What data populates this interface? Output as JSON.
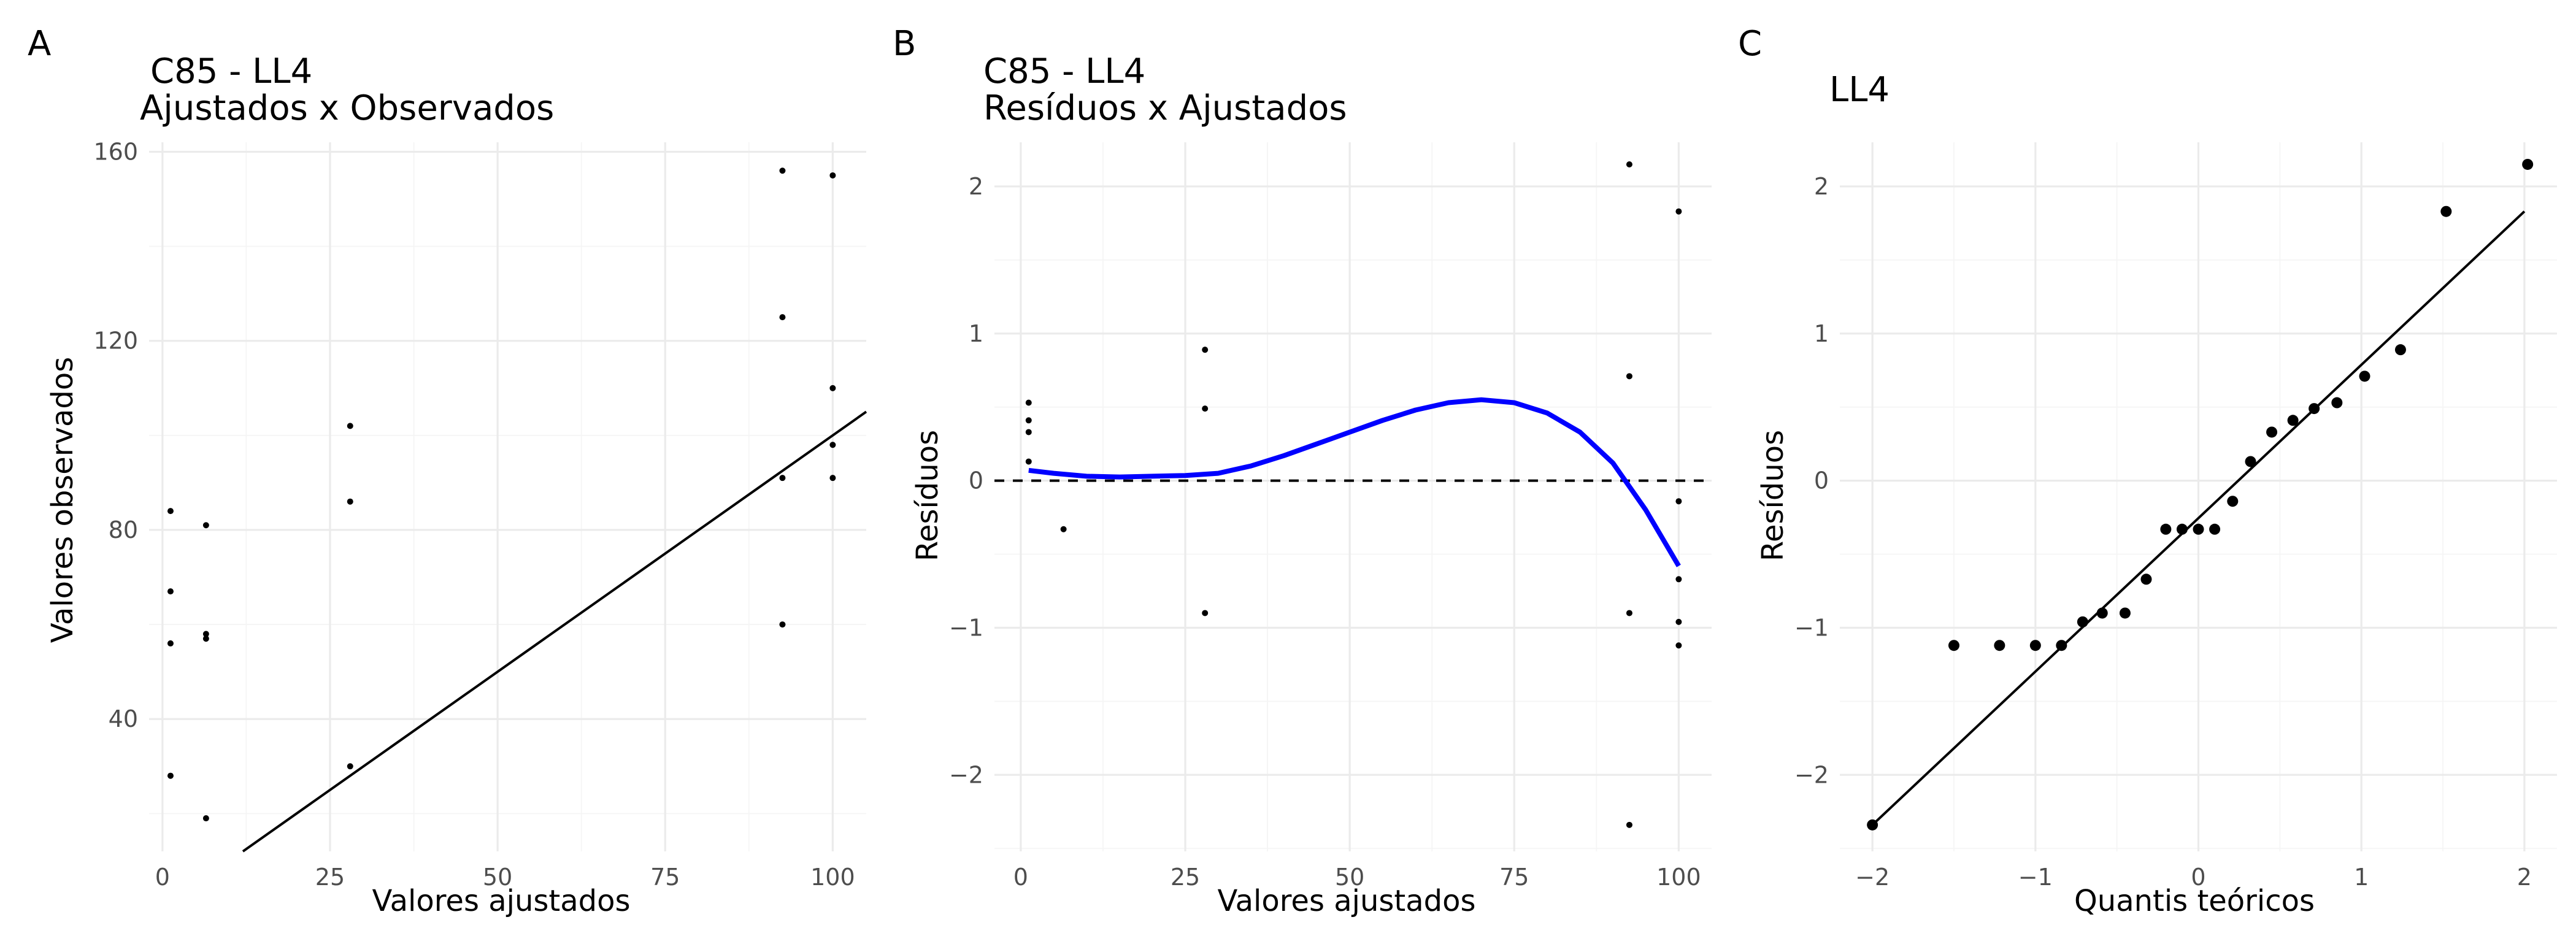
{
  "panel_tags": [
    "A",
    "B",
    "C"
  ],
  "chart_data": [
    {
      "type": "scatter",
      "tag": "A",
      "title_line1": "C85 - LL4",
      "title_line2": "Ajustados x Observados",
      "xlabel": "Valores ajustados",
      "ylabel": "Valores observados",
      "xlim": [
        -2,
        105
      ],
      "ylim": [
        12,
        162
      ],
      "x_ticks": [
        0,
        25,
        50,
        75,
        100
      ],
      "y_ticks": [
        40,
        80,
        120,
        160
      ],
      "grid": true,
      "points": [
        {
          "x": 1.2,
          "y": 84
        },
        {
          "x": 1.2,
          "y": 67
        },
        {
          "x": 1.2,
          "y": 56
        },
        {
          "x": 1.2,
          "y": 28
        },
        {
          "x": 6.5,
          "y": 81
        },
        {
          "x": 6.5,
          "y": 58
        },
        {
          "x": 6.5,
          "y": 57
        },
        {
          "x": 6.5,
          "y": 19
        },
        {
          "x": 28,
          "y": 102
        },
        {
          "x": 28,
          "y": 86
        },
        {
          "x": 28,
          "y": 30
        },
        {
          "x": 92.5,
          "y": 156
        },
        {
          "x": 92.5,
          "y": 125
        },
        {
          "x": 92.5,
          "y": 91
        },
        {
          "x": 92.5,
          "y": 60
        },
        {
          "x": 100,
          "y": 155
        },
        {
          "x": 100,
          "y": 110
        },
        {
          "x": 100,
          "y": 98
        },
        {
          "x": 100,
          "y": 91
        }
      ],
      "reference_line": {
        "intercept": 0,
        "slope": 1
      }
    },
    {
      "type": "scatter",
      "tag": "B",
      "title_line1": "C85 - LL4",
      "title_line2": "Resíduos x Ajustados",
      "xlabel": "Valores ajustados",
      "ylabel": "Resíduos",
      "xlim": [
        -4,
        105
      ],
      "ylim": [
        -2.52,
        2.3
      ],
      "x_ticks": [
        0,
        25,
        50,
        75,
        100
      ],
      "y_ticks": [
        -2,
        -1,
        0,
        1,
        2
      ],
      "grid": true,
      "points": [
        {
          "x": 1.2,
          "y": 0.53
        },
        {
          "x": 1.2,
          "y": 0.41
        },
        {
          "x": 1.2,
          "y": 0.33
        },
        {
          "x": 1.2,
          "y": 0.13
        },
        {
          "x": 6.5,
          "y": -0.33
        },
        {
          "x": 28,
          "y": 0.89
        },
        {
          "x": 28,
          "y": 0.49
        },
        {
          "x": 28,
          "y": -0.9
        },
        {
          "x": 92.5,
          "y": 2.15
        },
        {
          "x": 92.5,
          "y": 0.71
        },
        {
          "x": 92.5,
          "y": -0.9
        },
        {
          "x": 92.5,
          "y": -2.34
        },
        {
          "x": 100,
          "y": 1.83
        },
        {
          "x": 100,
          "y": -0.14
        },
        {
          "x": 100,
          "y": -0.67
        },
        {
          "x": 100,
          "y": -0.96
        },
        {
          "x": 100,
          "y": -1.12
        }
      ],
      "zero_line": 0,
      "smooth_color": "#0000ff",
      "smooth_curve": [
        {
          "x": 1.2,
          "y": 0.07
        },
        {
          "x": 5,
          "y": 0.05
        },
        {
          "x": 10,
          "y": 0.03
        },
        {
          "x": 15,
          "y": 0.025
        },
        {
          "x": 20,
          "y": 0.03
        },
        {
          "x": 25,
          "y": 0.035
        },
        {
          "x": 30,
          "y": 0.05
        },
        {
          "x": 35,
          "y": 0.1
        },
        {
          "x": 40,
          "y": 0.17
        },
        {
          "x": 45,
          "y": 0.25
        },
        {
          "x": 50,
          "y": 0.33
        },
        {
          "x": 55,
          "y": 0.41
        },
        {
          "x": 60,
          "y": 0.48
        },
        {
          "x": 65,
          "y": 0.53
        },
        {
          "x": 70,
          "y": 0.55
        },
        {
          "x": 75,
          "y": 0.53
        },
        {
          "x": 80,
          "y": 0.46
        },
        {
          "x": 85,
          "y": 0.33
        },
        {
          "x": 90,
          "y": 0.12
        },
        {
          "x": 95,
          "y": -0.2
        },
        {
          "x": 100,
          "y": -0.58
        }
      ]
    },
    {
      "type": "scatter",
      "tag": "C",
      "title_line1": "LL4",
      "title_line2": "",
      "xlabel": "Quantis teóricos",
      "ylabel": "Resíduos",
      "xlim": [
        -2.2,
        2.2
      ],
      "ylim": [
        -2.52,
        2.3
      ],
      "x_ticks": [
        -2,
        -1,
        0,
        1,
        2
      ],
      "y_ticks": [
        -2,
        -1,
        0,
        1,
        2
      ],
      "grid": true,
      "points": [
        {
          "x": -2.0,
          "y": -2.34
        },
        {
          "x": -1.5,
          "y": -1.12
        },
        {
          "x": -1.22,
          "y": -1.12
        },
        {
          "x": -1.0,
          "y": -1.12
        },
        {
          "x": -0.84,
          "y": -1.12
        },
        {
          "x": -0.71,
          "y": -0.96
        },
        {
          "x": -0.59,
          "y": -0.9
        },
        {
          "x": -0.45,
          "y": -0.9
        },
        {
          "x": -0.32,
          "y": -0.67
        },
        {
          "x": -0.2,
          "y": -0.33
        },
        {
          "x": -0.1,
          "y": -0.33
        },
        {
          "x": 0.0,
          "y": -0.33
        },
        {
          "x": 0.1,
          "y": -0.33
        },
        {
          "x": 0.21,
          "y": -0.14
        },
        {
          "x": 0.32,
          "y": 0.13
        },
        {
          "x": 0.45,
          "y": 0.33
        },
        {
          "x": 0.58,
          "y": 0.41
        },
        {
          "x": 0.71,
          "y": 0.49
        },
        {
          "x": 0.85,
          "y": 0.53
        },
        {
          "x": 1.02,
          "y": 0.71
        },
        {
          "x": 1.24,
          "y": 0.89
        },
        {
          "x": 1.52,
          "y": 1.83
        },
        {
          "x": 2.02,
          "y": 2.15
        }
      ],
      "qq_line": {
        "x1": -2.0,
        "y1": -2.34,
        "x2": 2.0,
        "y2": 1.83
      }
    }
  ]
}
